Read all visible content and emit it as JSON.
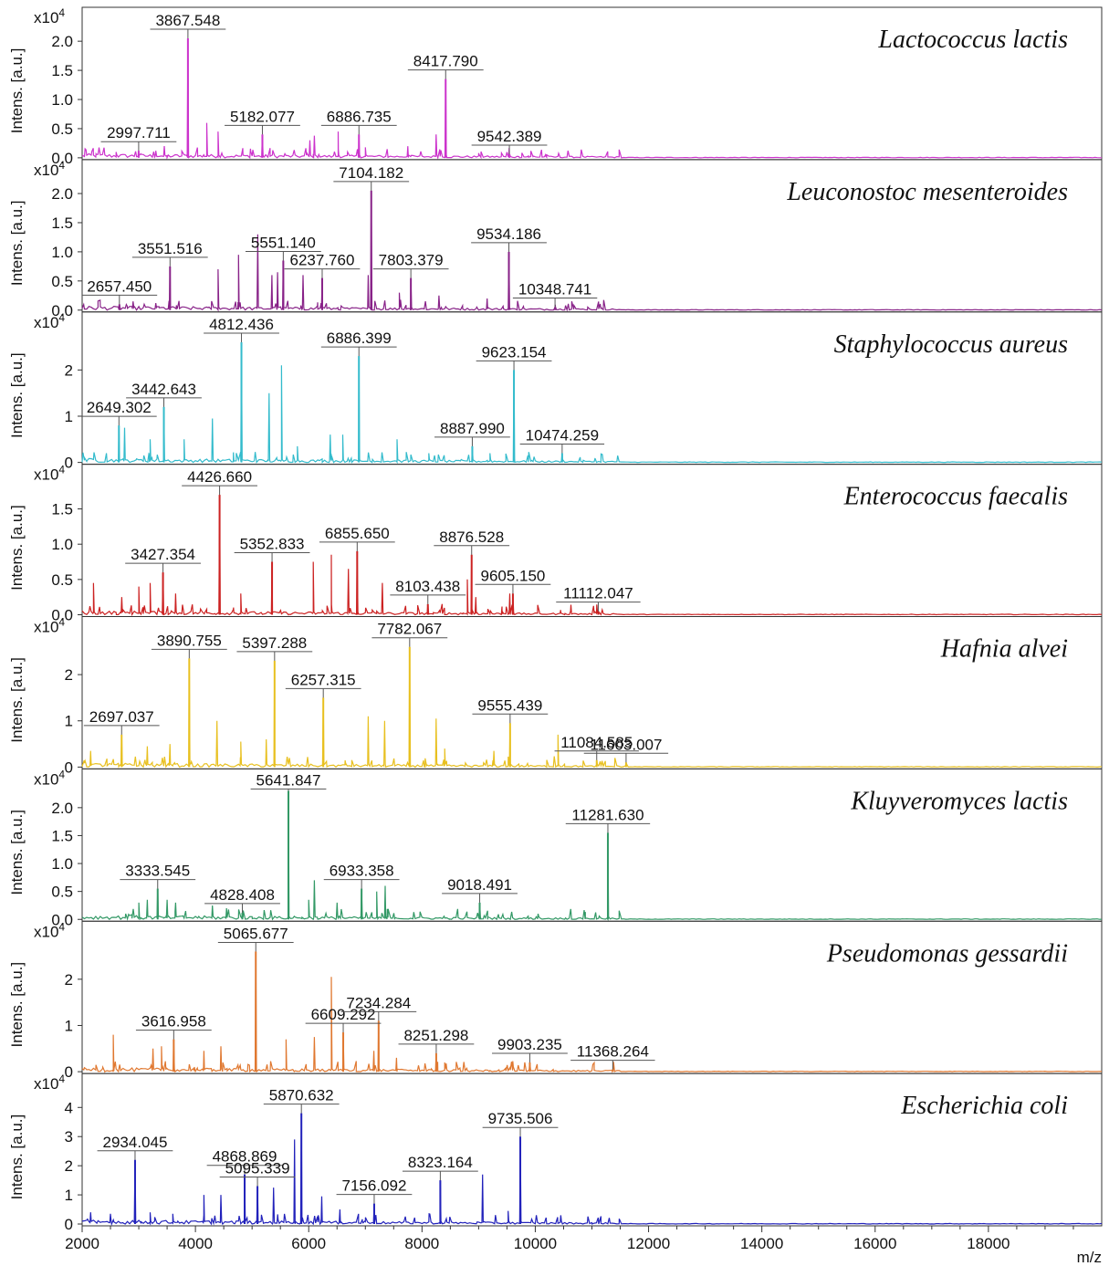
{
  "chart_data": {
    "type": "line",
    "xlabel": "m/z",
    "xlim": [
      2000,
      20000
    ],
    "x_ticks": [
      2000,
      4000,
      6000,
      8000,
      10000,
      12000,
      14000,
      16000,
      18000
    ],
    "ylabel": "Intens. [a.u.]",
    "y_multiplier": "x10",
    "y_multiplier_exp": "4",
    "panels": [
      {
        "name": "Lactococcus lactis",
        "color": "#cc33cc",
        "ylim": [
          0,
          2.3
        ],
        "y_ticks": [
          "0.0",
          "0.5",
          "1.0",
          "1.5",
          "2.0"
        ],
        "peaks": [
          {
            "x": 2997.711,
            "y": 0.12,
            "label": "2997.711"
          },
          {
            "x": 3867.548,
            "y": 2.05,
            "label": "3867.548"
          },
          {
            "x": 5182.077,
            "y": 0.4,
            "label": "5182.077"
          },
          {
            "x": 6886.735,
            "y": 0.4,
            "label": "6886.735"
          },
          {
            "x": 8417.79,
            "y": 1.35,
            "label": "8417.790"
          },
          {
            "x": 9542.389,
            "y": 0.06,
            "label": "9542.389"
          }
        ],
        "minor_peaks": [
          [
            2600,
            0.1
          ],
          [
            3300,
            0.12
          ],
          [
            3450,
            0.2
          ],
          [
            4200,
            0.6
          ],
          [
            4400,
            0.45
          ],
          [
            6020,
            0.3
          ],
          [
            6100,
            0.38
          ],
          [
            6520,
            0.45
          ],
          [
            7000,
            0.18
          ],
          [
            7750,
            0.2
          ],
          [
            8250,
            0.4
          ],
          [
            9000,
            0.08
          ],
          [
            10200,
            0.05
          ]
        ]
      },
      {
        "name": "Leuconostoc mesenteroides",
        "color": "#882288",
        "ylim": [
          0,
          2.3
        ],
        "y_ticks": [
          "0.0",
          "0.5",
          "1.0",
          "1.5",
          "2.0"
        ],
        "peaks": [
          {
            "x": 2657.45,
            "y": 0.1,
            "label": "2657.450"
          },
          {
            "x": 3551.516,
            "y": 0.75,
            "label": "3551.516"
          },
          {
            "x": 5551.14,
            "y": 0.85,
            "label": "5551.140"
          },
          {
            "x": 6237.76,
            "y": 0.55,
            "label": "6237.760"
          },
          {
            "x": 7104.182,
            "y": 2.05,
            "label": "7104.182"
          },
          {
            "x": 7803.379,
            "y": 0.55,
            "label": "7803.379"
          },
          {
            "x": 9534.186,
            "y": 1.0,
            "label": "9534.186"
          },
          {
            "x": 10348.741,
            "y": 0.05,
            "label": "10348.741"
          }
        ],
        "minor_peaks": [
          [
            2900,
            0.15
          ],
          [
            3300,
            0.12
          ],
          [
            4400,
            0.7
          ],
          [
            4760,
            0.95
          ],
          [
            5100,
            1.3
          ],
          [
            5350,
            0.6
          ],
          [
            5450,
            0.65
          ],
          [
            5900,
            0.6
          ],
          [
            7050,
            0.6
          ],
          [
            7600,
            0.3
          ],
          [
            8300,
            0.25
          ],
          [
            9150,
            0.2
          ]
        ]
      },
      {
        "name": "Staphylococcus aureus",
        "color": "#33bbcc",
        "ylim": [
          0,
          2.9
        ],
        "y_ticks": [
          "0",
          "1",
          "2"
        ],
        "peaks": [
          {
            "x": 2649.302,
            "y": 0.8,
            "label": "2649.302"
          },
          {
            "x": 3442.643,
            "y": 1.2,
            "label": "3442.643"
          },
          {
            "x": 4812.436,
            "y": 2.6,
            "label": "4812.436"
          },
          {
            "x": 6886.399,
            "y": 2.3,
            "label": "6886.399"
          },
          {
            "x": 8887.99,
            "y": 0.35,
            "label": "8887.990"
          },
          {
            "x": 9623.154,
            "y": 2.0,
            "label": "9623.154"
          },
          {
            "x": 10474.259,
            "y": 0.2,
            "label": "10474.259"
          }
        ],
        "minor_peaks": [
          [
            2750,
            0.75
          ],
          [
            3200,
            0.5
          ],
          [
            3800,
            0.5
          ],
          [
            4300,
            0.95
          ],
          [
            5300,
            1.5
          ],
          [
            5520,
            2.1
          ],
          [
            5800,
            0.35
          ],
          [
            6380,
            0.6
          ],
          [
            6600,
            0.6
          ],
          [
            7560,
            0.5
          ],
          [
            8120,
            0.2
          ],
          [
            9200,
            0.2
          ]
        ]
      },
      {
        "name": "Enterococcus faecalis",
        "color": "#cc2222",
        "ylim": [
          0,
          1.9
        ],
        "y_ticks": [
          "0.0",
          "0.5",
          "1.0",
          "1.5"
        ],
        "peaks": [
          {
            "x": 3427.354,
            "y": 0.6,
            "label": "3427.354"
          },
          {
            "x": 4426.66,
            "y": 1.7,
            "label": "4426.660"
          },
          {
            "x": 5352.833,
            "y": 0.75,
            "label": "5352.833"
          },
          {
            "x": 6855.65,
            "y": 0.9,
            "label": "6855.650"
          },
          {
            "x": 8103.438,
            "y": 0.15,
            "label": "8103.438"
          },
          {
            "x": 8876.528,
            "y": 0.85,
            "label": "8876.528"
          },
          {
            "x": 9605.15,
            "y": 0.3,
            "label": "9605.150"
          },
          {
            "x": 11112.047,
            "y": 0.05,
            "label": "11112.047"
          }
        ],
        "minor_peaks": [
          [
            2200,
            0.45
          ],
          [
            2700,
            0.25
          ],
          [
            3000,
            0.4
          ],
          [
            3200,
            0.45
          ],
          [
            3650,
            0.3
          ],
          [
            4800,
            0.3
          ],
          [
            6080,
            0.75
          ],
          [
            6400,
            0.85
          ],
          [
            6700,
            0.65
          ],
          [
            7300,
            0.45
          ],
          [
            8800,
            0.5
          ],
          [
            8950,
            0.25
          ],
          [
            9550,
            0.3
          ]
        ]
      },
      {
        "name": "Hafnia alvei",
        "color": "#e8c020",
        "ylim": [
          0,
          2.9
        ],
        "y_ticks": [
          "0",
          "1",
          "2"
        ],
        "peaks": [
          {
            "x": 2697.037,
            "y": 0.7,
            "label": "2697.037"
          },
          {
            "x": 3890.755,
            "y": 2.35,
            "label": "3890.755"
          },
          {
            "x": 5397.288,
            "y": 2.3,
            "label": "5397.288"
          },
          {
            "x": 6257.315,
            "y": 1.5,
            "label": "6257.315"
          },
          {
            "x": 7782.067,
            "y": 2.6,
            "label": "7782.067"
          },
          {
            "x": 9555.439,
            "y": 0.95,
            "label": "9555.439"
          },
          {
            "x": 11084.585,
            "y": 0.15,
            "label": "11084.585"
          },
          {
            "x": 11603.007,
            "y": 0.1,
            "label": "11603.007"
          }
        ],
        "minor_peaks": [
          [
            2150,
            0.35
          ],
          [
            3150,
            0.45
          ],
          [
            3550,
            0.5
          ],
          [
            4380,
            1.0
          ],
          [
            4800,
            0.55
          ],
          [
            5250,
            0.6
          ],
          [
            7050,
            1.1
          ],
          [
            7340,
            1.0
          ],
          [
            8250,
            1.05
          ],
          [
            8400,
            0.4
          ],
          [
            9270,
            0.35
          ],
          [
            10400,
            0.7
          ]
        ]
      },
      {
        "name": "Kluyveromyces lactis",
        "color": "#339966",
        "ylim": [
          0,
          2.4
        ],
        "y_ticks": [
          "0.0",
          "0.5",
          "1.0",
          "1.5",
          "2.0"
        ],
        "peaks": [
          {
            "x": 3333.545,
            "y": 0.55,
            "label": "3333.545"
          },
          {
            "x": 4828.408,
            "y": 0.12,
            "label": "4828.408"
          },
          {
            "x": 5641.847,
            "y": 2.3,
            "label": "5641.847"
          },
          {
            "x": 6933.358,
            "y": 0.55,
            "label": "6933.358"
          },
          {
            "x": 9018.491,
            "y": 0.3,
            "label": "9018.491"
          },
          {
            "x": 11281.63,
            "y": 1.55,
            "label": "11281.630"
          }
        ],
        "minor_peaks": [
          [
            3000,
            0.3
          ],
          [
            3150,
            0.35
          ],
          [
            3500,
            0.35
          ],
          [
            3650,
            0.3
          ],
          [
            4300,
            0.25
          ],
          [
            4550,
            0.2
          ],
          [
            6000,
            0.35
          ],
          [
            6100,
            0.7
          ],
          [
            6500,
            0.3
          ],
          [
            7200,
            0.5
          ],
          [
            7350,
            0.6
          ],
          [
            10050,
            0.1
          ]
        ]
      },
      {
        "name": "Pseudomonas gessardii",
        "color": "#e07830",
        "ylim": [
          0,
          2.9
        ],
        "y_ticks": [
          "0",
          "1",
          "2"
        ],
        "peaks": [
          {
            "x": 3616.958,
            "y": 0.7,
            "label": "3616.958"
          },
          {
            "x": 5065.677,
            "y": 2.6,
            "label": "5065.677"
          },
          {
            "x": 6609.292,
            "y": 0.85,
            "label": "6609.292"
          },
          {
            "x": 7234.284,
            "y": 1.1,
            "label": "7234.284"
          },
          {
            "x": 8251.298,
            "y": 0.4,
            "label": "8251.298"
          },
          {
            "x": 9903.235,
            "y": 0.2,
            "label": "9903.235"
          },
          {
            "x": 11368.264,
            "y": 0.05,
            "label": "11368.264"
          }
        ],
        "minor_peaks": [
          [
            2550,
            0.8
          ],
          [
            3250,
            0.5
          ],
          [
            3400,
            0.55
          ],
          [
            4150,
            0.45
          ],
          [
            4450,
            0.55
          ],
          [
            5600,
            0.7
          ],
          [
            6100,
            0.75
          ],
          [
            6400,
            2.05
          ],
          [
            7150,
            0.45
          ],
          [
            7550,
            0.3
          ],
          [
            8400,
            0.2
          ]
        ]
      },
      {
        "name": "Escherichia coli",
        "color": "#2222bb",
        "ylim": [
          0,
          4.6
        ],
        "y_ticks": [
          "0",
          "1",
          "2",
          "3",
          "4"
        ],
        "peaks": [
          {
            "x": 2934.045,
            "y": 2.2,
            "label": "2934.045"
          },
          {
            "x": 4868.869,
            "y": 1.7,
            "label": "4868.869"
          },
          {
            "x": 5095.339,
            "y": 1.3,
            "label": "5095.339"
          },
          {
            "x": 5870.632,
            "y": 3.8,
            "label": "5870.632"
          },
          {
            "x": 7156.092,
            "y": 0.7,
            "label": "7156.092"
          },
          {
            "x": 8323.164,
            "y": 1.5,
            "label": "8323.164"
          },
          {
            "x": 9735.506,
            "y": 3.0,
            "label": "9735.506"
          }
        ],
        "minor_peaks": [
          [
            2150,
            0.4
          ],
          [
            2500,
            0.35
          ],
          [
            3200,
            0.4
          ],
          [
            3600,
            0.35
          ],
          [
            4150,
            1.0
          ],
          [
            4450,
            1.0
          ],
          [
            5380,
            1.25
          ],
          [
            5750,
            2.9
          ],
          [
            6230,
            0.95
          ],
          [
            6550,
            0.5
          ],
          [
            9070,
            1.7
          ],
          [
            9520,
            0.45
          ],
          [
            10450,
            0.3
          ]
        ]
      }
    ]
  }
}
